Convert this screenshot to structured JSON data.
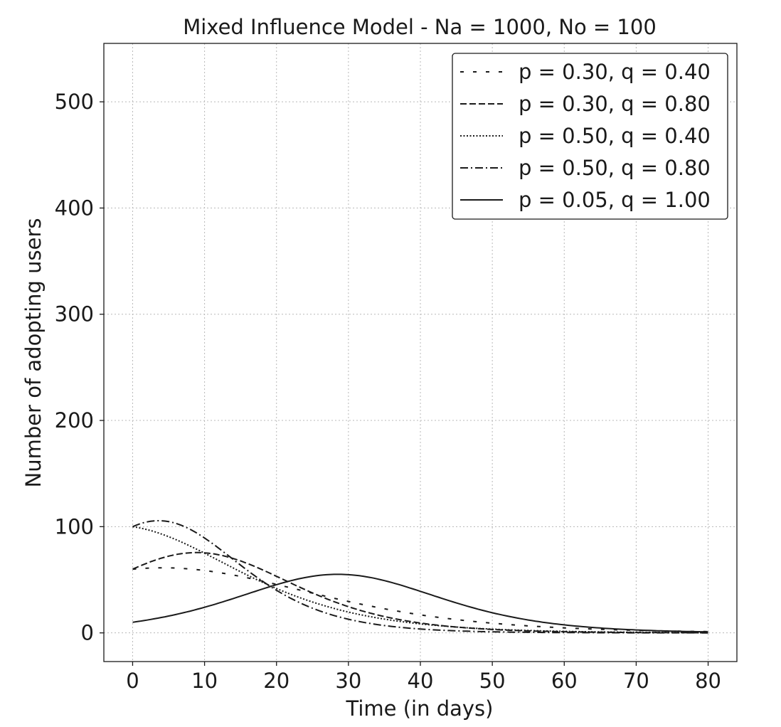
{
  "chart_data": {
    "type": "line",
    "title": "Mixed Influence Model - Na = 1000, No = 100",
    "xlabel": "Time (in days)",
    "ylabel": "Number of adopting users",
    "xlim": [
      -4,
      84
    ],
    "ylim": [
      -27,
      555
    ],
    "xticks": [
      0,
      10,
      20,
      30,
      40,
      50,
      60,
      70,
      80
    ],
    "yticks": [
      0,
      100,
      200,
      300,
      400,
      500
    ],
    "grid": true,
    "legend_position": "top-right",
    "line_color": "#1a1a1a",
    "series": [
      {
        "name": "p = 0.30, q = 0.40",
        "style": "loosely-dashed",
        "p": 0.3,
        "q": 0.4
      },
      {
        "name": "p = 0.30, q = 0.80",
        "style": "dashed",
        "p": 0.3,
        "q": 0.8
      },
      {
        "name": "p = 0.50, q = 0.40",
        "style": "dotted",
        "p": 0.5,
        "q": 0.4
      },
      {
        "name": "p = 0.50, q = 0.80",
        "style": "dash-dot",
        "p": 0.5,
        "q": 0.8
      },
      {
        "name": "p = 0.05, q = 1.00",
        "style": "solid",
        "p": 0.05,
        "q": 1.0
      }
    ]
  }
}
